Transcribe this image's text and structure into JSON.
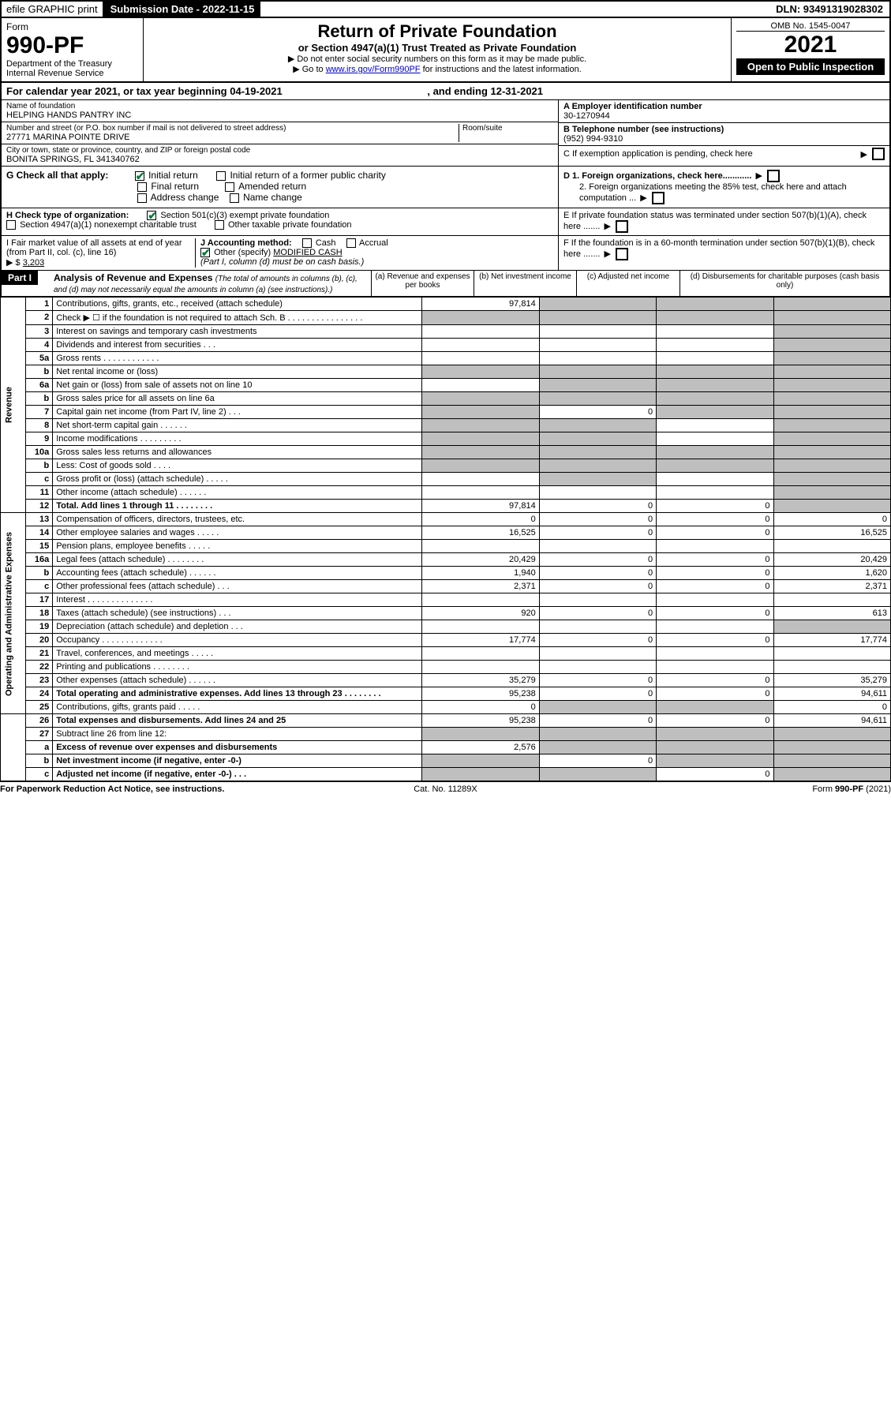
{
  "top_bar": {
    "efile": "efile GRAPHIC print",
    "submission_label": "Submission Date - 2022-11-15",
    "dln": "DLN: 93491319028302"
  },
  "header": {
    "form_label": "Form",
    "form_no": "990-PF",
    "dept1": "Department of the Treasury",
    "dept2": "Internal Revenue Service",
    "title": "Return of Private Foundation",
    "subtitle": "or Section 4947(a)(1) Trust Treated as Private Foundation",
    "instr1": "▶ Do not enter social security numbers on this form as it may be made public.",
    "instr2_pre": "▶ Go to ",
    "instr2_link": "www.irs.gov/Form990PF",
    "instr2_post": " for instructions and the latest information.",
    "omb": "OMB No. 1545-0047",
    "year": "2021",
    "inspection": "Open to Public Inspection"
  },
  "cal_year": {
    "prefix": "For calendar year 2021, or tax year beginning ",
    "begin": "04-19-2021",
    "mid": " , and ending ",
    "end": "12-31-2021"
  },
  "org": {
    "name_label": "Name of foundation",
    "name": "HELPING HANDS PANTRY INC",
    "addr_label": "Number and street (or P.O. box number if mail is not delivered to street address)",
    "addr": "27771 MARINA POINTE DRIVE",
    "room_label": "Room/suite",
    "city_label": "City or town, state or province, country, and ZIP or foreign postal code",
    "city": "BONITA SPRINGS, FL  341340762",
    "a_label": "A Employer identification number",
    "ein": "30-1270944",
    "b_label": "B Telephone number (see instructions)",
    "phone": "(952) 994-9310",
    "c_label": "C If exemption application is pending, check here"
  },
  "section_g": {
    "label": "G Check all that apply:",
    "opts": [
      "Initial return",
      "Initial return of a former public charity",
      "Final return",
      "Amended return",
      "Address change",
      "Name change"
    ],
    "checked_idx": 0
  },
  "section_d": {
    "d1": "D 1. Foreign organizations, check here............",
    "d2": "2. Foreign organizations meeting the 85% test, check here and attach computation ...",
    "e": "E  If private foundation status was terminated under section 507(b)(1)(A), check here .......",
    "f": "F  If the foundation is in a 60-month termination under section 507(b)(1)(B), check here ......."
  },
  "section_h": {
    "label": "H Check type of organization:",
    "opt1": "Section 501(c)(3) exempt private foundation",
    "opt2": "Section 4947(a)(1) nonexempt charitable trust",
    "opt3": "Other taxable private foundation"
  },
  "section_i": {
    "label": "I Fair market value of all assets at end of year (from Part II, col. (c), line 16)",
    "arrow": "▶ $",
    "value": "3,203"
  },
  "section_j": {
    "label": "J Accounting method:",
    "opts": [
      "Cash",
      "Accrual"
    ],
    "other_label": "Other (specify)",
    "other_val": "MODIFIED CASH",
    "note": "(Part I, column (d) must be on cash basis.)"
  },
  "part1": {
    "label": "Part I",
    "title": "Analysis of Revenue and Expenses",
    "title_note": "(The total of amounts in columns (b), (c), and (d) may not necessarily equal the amounts in column (a) (see instructions).)",
    "cols": {
      "a": "(a) Revenue and expenses per books",
      "b": "(b) Net investment income",
      "c": "(c) Adjusted net income",
      "d": "(d) Disbursements for charitable purposes (cash basis only)"
    }
  },
  "sidelabels": {
    "rev": "Revenue",
    "opex": "Operating and Administrative Expenses"
  },
  "rows": [
    {
      "n": "1",
      "desc": "Contributions, gifts, grants, etc., received (attach schedule)",
      "a": "97,814",
      "b": "",
      "c": "",
      "d": "",
      "shade_b": true,
      "shade_c": true,
      "shade_d": true
    },
    {
      "n": "2",
      "desc": "Check ▶ ☐ if the foundation is not required to attach Sch. B   .  .  .  .  .  .  .  .  .  .  .  .  .  .  .  .",
      "a": "",
      "b": "",
      "c": "",
      "d": "",
      "shade_a": true,
      "shade_b": true,
      "shade_c": true,
      "shade_d": true
    },
    {
      "n": "3",
      "desc": "Interest on savings and temporary cash investments",
      "a": "",
      "b": "",
      "c": "",
      "d": "",
      "shade_d": true
    },
    {
      "n": "4",
      "desc": "Dividends and interest from securities   .  .  .",
      "a": "",
      "b": "",
      "c": "",
      "d": "",
      "shade_d": true
    },
    {
      "n": "5a",
      "desc": "Gross rents   .  .  .  .  .  .  .  .  .  .  .  .",
      "a": "",
      "b": "",
      "c": "",
      "d": "",
      "shade_d": true
    },
    {
      "n": "b",
      "desc": "Net rental income or (loss)",
      "a": "",
      "b": "",
      "c": "",
      "d": "",
      "shade_a": true,
      "shade_b": true,
      "shade_c": true,
      "shade_d": true,
      "inset": true
    },
    {
      "n": "6a",
      "desc": "Net gain or (loss) from sale of assets not on line 10",
      "a": "",
      "b": "",
      "c": "",
      "d": "",
      "shade_b": true,
      "shade_c": true,
      "shade_d": true
    },
    {
      "n": "b",
      "desc": "Gross sales price for all assets on line 6a",
      "a": "",
      "b": "",
      "c": "",
      "d": "",
      "shade_a": true,
      "shade_b": true,
      "shade_c": true,
      "shade_d": true,
      "inset": true
    },
    {
      "n": "7",
      "desc": "Capital gain net income (from Part IV, line 2)   .  .  .",
      "a": "",
      "b": "0",
      "c": "",
      "d": "",
      "shade_a": true,
      "shade_c": true,
      "shade_d": true
    },
    {
      "n": "8",
      "desc": "Net short-term capital gain   .  .  .  .  .  .",
      "a": "",
      "b": "",
      "c": "",
      "d": "",
      "shade_a": true,
      "shade_b": true,
      "shade_d": true
    },
    {
      "n": "9",
      "desc": "Income modifications   .  .  .  .  .  .  .  .  .",
      "a": "",
      "b": "",
      "c": "",
      "d": "",
      "shade_a": true,
      "shade_b": true,
      "shade_d": true
    },
    {
      "n": "10a",
      "desc": "Gross sales less returns and allowances",
      "a": "",
      "b": "",
      "c": "",
      "d": "",
      "shade_a": true,
      "shade_b": true,
      "shade_c": true,
      "shade_d": true,
      "inset": true
    },
    {
      "n": "b",
      "desc": "Less: Cost of goods sold   .  .  .  .",
      "a": "",
      "b": "",
      "c": "",
      "d": "",
      "shade_a": true,
      "shade_b": true,
      "shade_c": true,
      "shade_d": true,
      "inset": true
    },
    {
      "n": "c",
      "desc": "Gross profit or (loss) (attach schedule)   .  .  .  .  .",
      "a": "",
      "b": "",
      "c": "",
      "d": "",
      "shade_b": true,
      "shade_d": true
    },
    {
      "n": "11",
      "desc": "Other income (attach schedule)   .  .  .  .  .  .",
      "a": "",
      "b": "",
      "c": "",
      "d": "",
      "shade_d": true
    },
    {
      "n": "12",
      "desc": "Total. Add lines 1 through 11   .  .  .  .  .  .  .  .",
      "a": "97,814",
      "b": "0",
      "c": "0",
      "d": "",
      "shade_d": true,
      "bold": true
    },
    {
      "n": "13",
      "desc": "Compensation of officers, directors, trustees, etc.",
      "a": "0",
      "b": "0",
      "c": "0",
      "d": "0"
    },
    {
      "n": "14",
      "desc": "Other employee salaries and wages   .  .  .  .  .",
      "a": "16,525",
      "b": "0",
      "c": "0",
      "d": "16,525"
    },
    {
      "n": "15",
      "desc": "Pension plans, employee benefits   .  .  .  .  .",
      "a": "",
      "b": "",
      "c": "",
      "d": ""
    },
    {
      "n": "16a",
      "desc": "Legal fees (attach schedule)   .  .  .  .  .  .  .  .",
      "a": "20,429",
      "b": "0",
      "c": "0",
      "d": "20,429"
    },
    {
      "n": "b",
      "desc": "Accounting fees (attach schedule)   .  .  .  .  .  .",
      "a": "1,940",
      "b": "0",
      "c": "0",
      "d": "1,620"
    },
    {
      "n": "c",
      "desc": "Other professional fees (attach schedule)   .  .  .",
      "a": "2,371",
      "b": "0",
      "c": "0",
      "d": "2,371"
    },
    {
      "n": "17",
      "desc": "Interest   .  .  .  .  .  .  .  .  .  .  .  .  .  .",
      "a": "",
      "b": "",
      "c": "",
      "d": ""
    },
    {
      "n": "18",
      "desc": "Taxes (attach schedule) (see instructions)   .  .  .",
      "a": "920",
      "b": "0",
      "c": "0",
      "d": "613"
    },
    {
      "n": "19",
      "desc": "Depreciation (attach schedule) and depletion   .  .  .",
      "a": "",
      "b": "",
      "c": "",
      "d": "",
      "shade_d": true
    },
    {
      "n": "20",
      "desc": "Occupancy   .  .  .  .  .  .  .  .  .  .  .  .  .",
      "a": "17,774",
      "b": "0",
      "c": "0",
      "d": "17,774"
    },
    {
      "n": "21",
      "desc": "Travel, conferences, and meetings   .  .  .  .  .",
      "a": "",
      "b": "",
      "c": "",
      "d": ""
    },
    {
      "n": "22",
      "desc": "Printing and publications   .  .  .  .  .  .  .  .",
      "a": "",
      "b": "",
      "c": "",
      "d": ""
    },
    {
      "n": "23",
      "desc": "Other expenses (attach schedule)   .  .  .  .  .  .",
      "a": "35,279",
      "b": "0",
      "c": "0",
      "d": "35,279"
    },
    {
      "n": "24",
      "desc": "Total operating and administrative expenses. Add lines 13 through 23   .  .  .  .  .  .  .  .",
      "a": "95,238",
      "b": "0",
      "c": "0",
      "d": "94,611",
      "bold": true
    },
    {
      "n": "25",
      "desc": "Contributions, gifts, grants paid   .  .  .  .  .",
      "a": "0",
      "b": "",
      "c": "",
      "d": "0",
      "shade_b": true,
      "shade_c": true
    },
    {
      "n": "26",
      "desc": "Total expenses and disbursements. Add lines 24 and 25",
      "a": "95,238",
      "b": "0",
      "c": "0",
      "d": "94,611",
      "bold": true
    },
    {
      "n": "27",
      "desc": "Subtract line 26 from line 12:",
      "a": "",
      "b": "",
      "c": "",
      "d": "",
      "shade_a": true,
      "shade_b": true,
      "shade_c": true,
      "shade_d": true
    },
    {
      "n": "a",
      "desc": "Excess of revenue over expenses and disbursements",
      "a": "2,576",
      "b": "",
      "c": "",
      "d": "",
      "shade_b": true,
      "shade_c": true,
      "shade_d": true,
      "bold": true
    },
    {
      "n": "b",
      "desc": "Net investment income (if negative, enter -0-)",
      "a": "",
      "b": "0",
      "c": "",
      "d": "",
      "shade_a": true,
      "shade_c": true,
      "shade_d": true,
      "bold": true
    },
    {
      "n": "c",
      "desc": "Adjusted net income (if negative, enter -0-)   .  .  .",
      "a": "",
      "b": "",
      "c": "0",
      "d": "",
      "shade_a": true,
      "shade_b": true,
      "shade_d": true,
      "bold": true
    }
  ],
  "footer": {
    "left": "For Paperwork Reduction Act Notice, see instructions.",
    "mid": "Cat. No. 11289X",
    "right": "Form 990-PF (2021)"
  },
  "colors": {
    "black": "#000000",
    "check_green": "#0a7a3a",
    "link_blue": "#0000cc",
    "shade": "#bfbfbf"
  }
}
